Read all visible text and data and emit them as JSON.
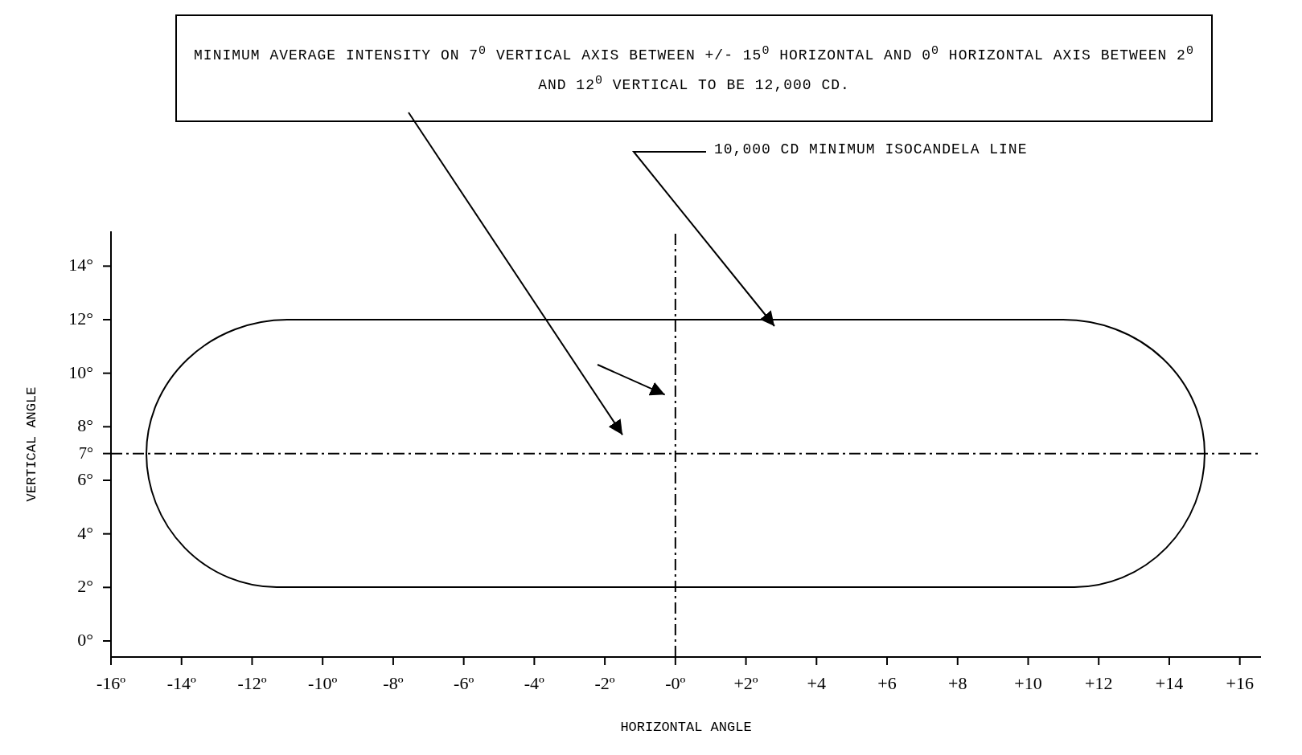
{
  "chart_data": {
    "type": "line",
    "xlabel": "HORIZONTAL ANGLE",
    "ylabel": "VERTICAL ANGLE",
    "xlim": [
      -16,
      16.6
    ],
    "ylim": [
      -0.6,
      15.3
    ],
    "xticks": [
      {
        "value": -16,
        "label": "-16º"
      },
      {
        "value": -14,
        "label": "-14º"
      },
      {
        "value": -12,
        "label": "-12º"
      },
      {
        "value": -10,
        "label": "-10º"
      },
      {
        "value": -8,
        "label": "-8º"
      },
      {
        "value": -6,
        "label": "-6º"
      },
      {
        "value": -4,
        "label": "-4º"
      },
      {
        "value": -2,
        "label": "-2º"
      },
      {
        "value": 0,
        "label": "-0º"
      },
      {
        "value": 2,
        "label": "+2º"
      },
      {
        "value": 4,
        "label": "+4"
      },
      {
        "value": 6,
        "label": "+6"
      },
      {
        "value": 8,
        "label": "+8"
      },
      {
        "value": 10,
        "label": "+10"
      },
      {
        "value": 12,
        "label": "+12"
      },
      {
        "value": 14,
        "label": "+14"
      },
      {
        "value": 16,
        "label": "+16"
      }
    ],
    "yticks": [
      {
        "value": 0,
        "label": "0°"
      },
      {
        "value": 2,
        "label": "2°"
      },
      {
        "value": 4,
        "label": "4°"
      },
      {
        "value": 6,
        "label": "6°"
      },
      {
        "value": 7,
        "label": "7°"
      },
      {
        "value": 8,
        "label": "8°"
      },
      {
        "value": 10,
        "label": "10°"
      },
      {
        "value": 12,
        "label": "12°"
      },
      {
        "value": 14,
        "label": "14°"
      }
    ],
    "grid": false,
    "ref_lines": [
      {
        "axis": "y",
        "value": 7,
        "line_style": "dashed",
        "color": "#000000"
      },
      {
        "axis": "x",
        "value": 0,
        "line_style": "dashed",
        "color": "#000000"
      }
    ],
    "annotations": [
      "MINIMUM AVERAGE INTENSITY ON 7$^{0}$ VERTICAL AXIS BETWEEN +/- 15$^{0}$ HORIZONTAL AND 0$^{0}$ HORIZONTAL AXIS BETWEEN 2$^{0}$ AND 12$^{0}$ VERTICAL TO BE 12,000 CD.",
      "10,000 CD MINIMUM ISOCANDELA LINE"
    ]
  }
}
